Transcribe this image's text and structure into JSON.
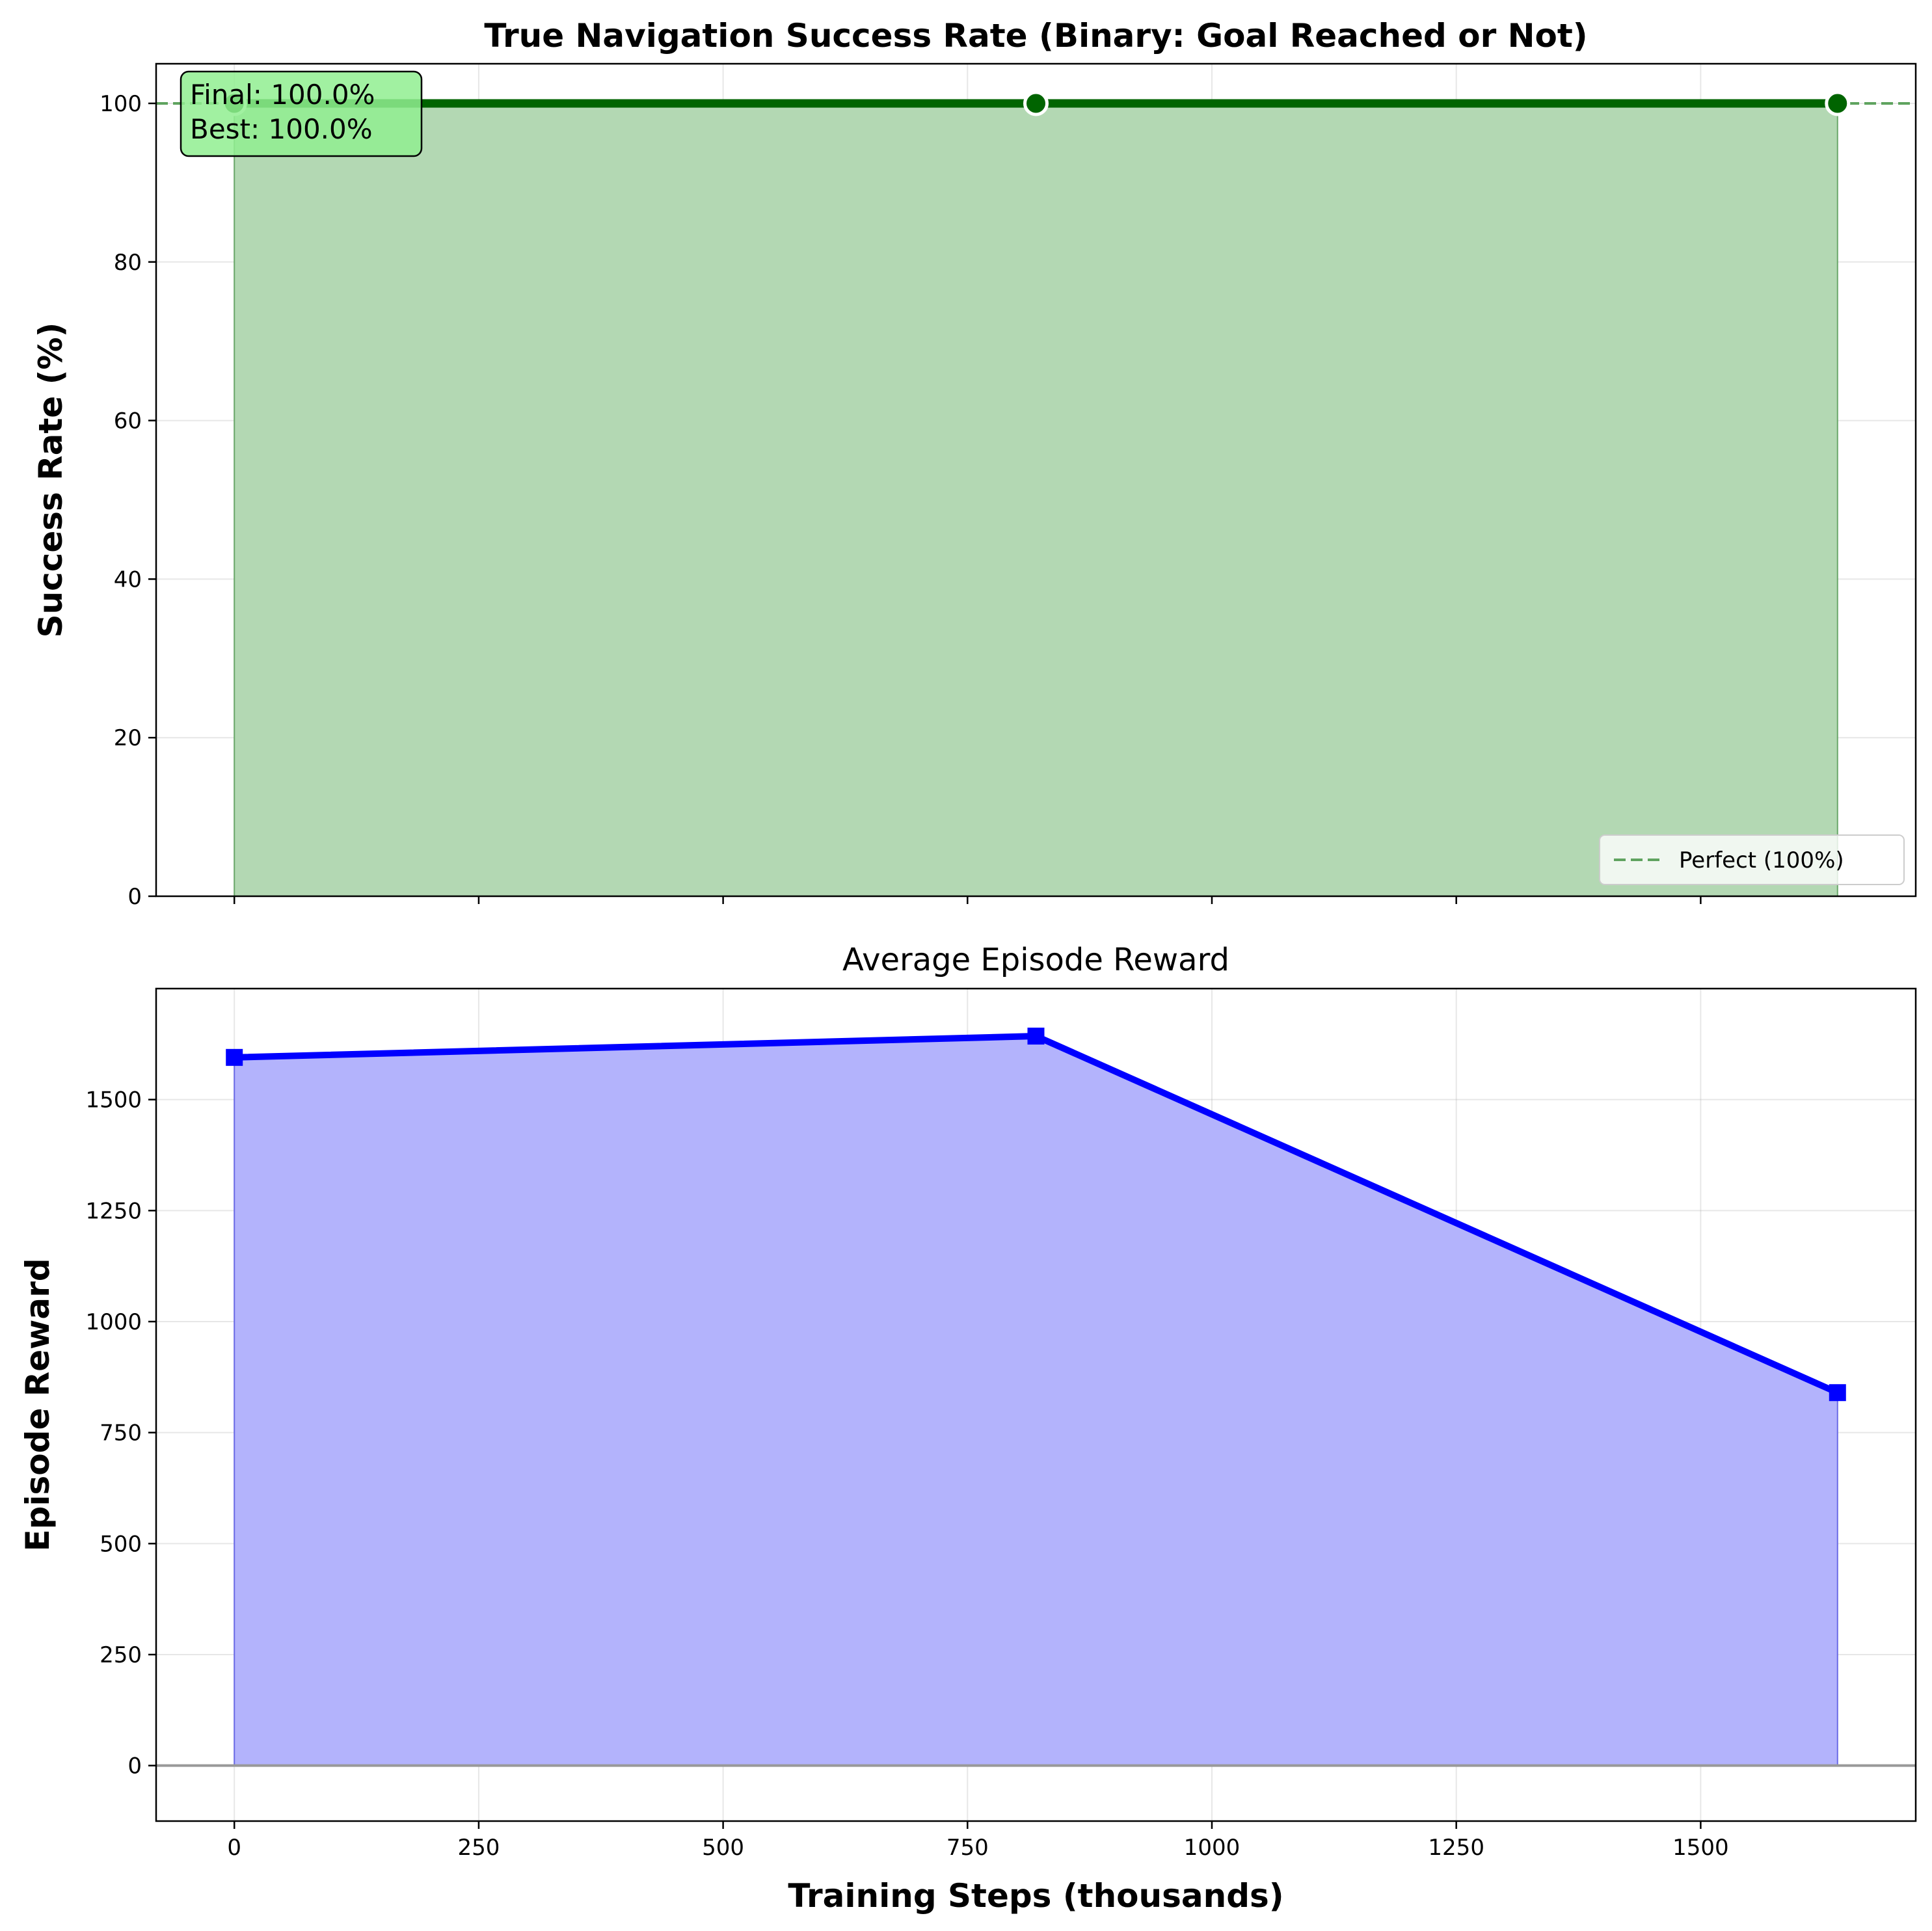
{
  "chart_data": [
    {
      "type": "line",
      "title": "True Navigation Success Rate (Binary: Goal Reached or Not)",
      "xlabel": "",
      "ylabel": "Success Rate (%)",
      "xlim": [
        -80,
        1720
      ],
      "ylim": [
        0,
        105
      ],
      "yticks": [
        0,
        20,
        40,
        60,
        80,
        100
      ],
      "xticks": [
        0,
        250,
        500,
        750,
        1000,
        1250,
        1500
      ],
      "grid": true,
      "fill_to_zero": true,
      "series": [
        {
          "x": [
            0,
            820,
            1640
          ],
          "y": [
            100,
            100,
            100
          ],
          "color": "#006400",
          "marker": "circle"
        }
      ],
      "reference_line": {
        "y": 100,
        "label": "Perfect (100%)",
        "style": "dashed",
        "color": "#5fa35f"
      },
      "legend": {
        "position": "lower-right",
        "entries": [
          "Perfect (100%)"
        ]
      },
      "annotation": {
        "lines": [
          "Final: 100.0%",
          "Best: 100.0%"
        ],
        "position": "top-left",
        "background": "#90ee90"
      }
    },
    {
      "type": "line",
      "title": "Average Episode Reward",
      "xlabel": "Training Steps (thousands)",
      "ylabel": "Episode Reward",
      "xlim": [
        -80,
        1720
      ],
      "ylim": [
        -125,
        1750
      ],
      "yticks": [
        0,
        250,
        500,
        750,
        1000,
        1250,
        1500
      ],
      "xticks": [
        0,
        250,
        500,
        750,
        1000,
        1250,
        1500
      ],
      "xtick_labels": [
        "0",
        "250",
        "500",
        "750",
        "1000",
        "1250",
        "1500"
      ],
      "grid": true,
      "fill_to_zero": true,
      "series": [
        {
          "x": [
            0,
            820,
            1640
          ],
          "y": [
            1595,
            1643,
            840
          ],
          "color": "#0000ff",
          "marker": "square"
        }
      ],
      "reference_line": {
        "y": 0,
        "color": "#999999"
      }
    }
  ]
}
